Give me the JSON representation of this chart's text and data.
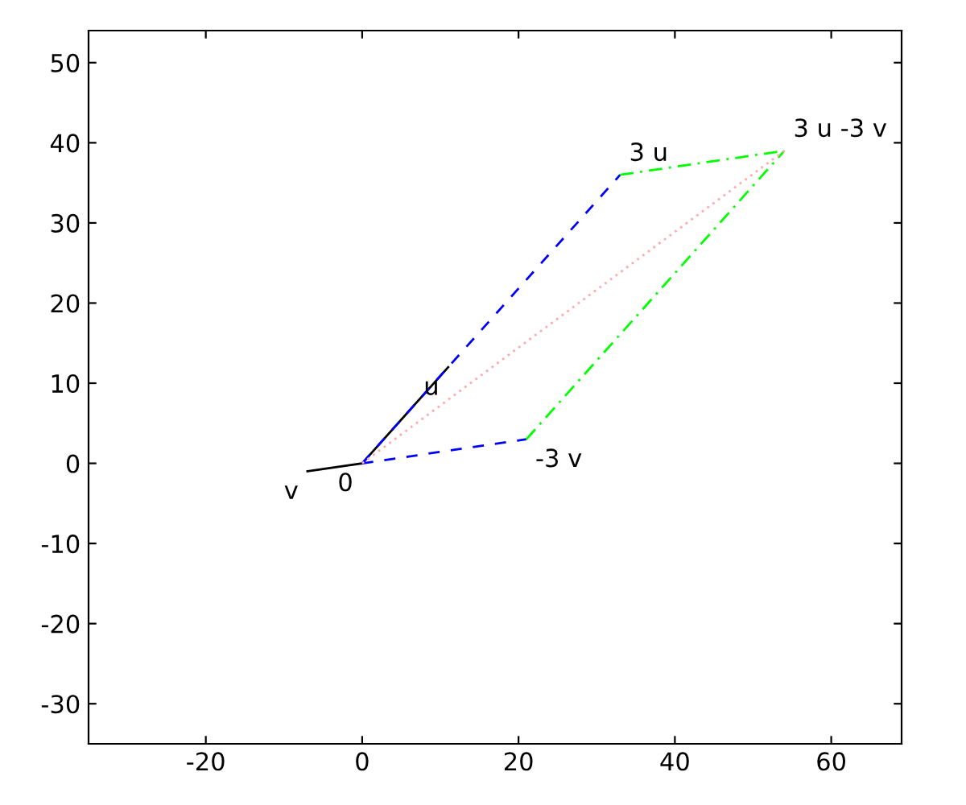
{
  "chart_data": {
    "type": "line",
    "series": [
      {
        "color": "#000000",
        "line_style": "solid",
        "x": [
          0,
          11
        ],
        "values": [
          0,
          12
        ]
      },
      {
        "color": "#000000",
        "line_style": "solid",
        "x": [
          0,
          -7
        ],
        "values": [
          0,
          -1
        ]
      },
      {
        "color": "#0000ff",
        "line_style": "dashed",
        "x": [
          0,
          33
        ],
        "values": [
          0,
          36
        ]
      },
      {
        "color": "#0000ff",
        "line_style": "dashed",
        "x": [
          0,
          21
        ],
        "values": [
          0,
          3
        ]
      },
      {
        "color": "#00ff00",
        "line_style": "dashdot",
        "x": [
          33,
          54
        ],
        "values": [
          36,
          39
        ]
      },
      {
        "color": "#00ff00",
        "line_style": "dashdot",
        "x": [
          21,
          54
        ],
        "values": [
          3,
          39
        ]
      },
      {
        "color": "#ffaaaa",
        "line_style": "dotted",
        "x": [
          0,
          54
        ],
        "values": [
          0,
          39
        ]
      }
    ],
    "annotations": [
      {
        "text": "0",
        "x": 0,
        "y": 0
      },
      {
        "text": "u",
        "x": 11,
        "y": 12
      },
      {
        "text": "v",
        "x": -7,
        "y": -1
      },
      {
        "text": "3 u",
        "x": 33,
        "y": 36
      },
      {
        "text": "-3 v",
        "x": 21,
        "y": 3
      },
      {
        "text": "3 u -3 v",
        "x": 54,
        "y": 39
      }
    ],
    "xlim": [
      -35,
      69
    ],
    "ylim": [
      -35,
      54
    ],
    "xticks": [
      -20,
      0,
      20,
      40,
      60
    ],
    "yticks": [
      -30,
      -20,
      -10,
      0,
      10,
      20,
      30,
      40,
      50
    ]
  }
}
